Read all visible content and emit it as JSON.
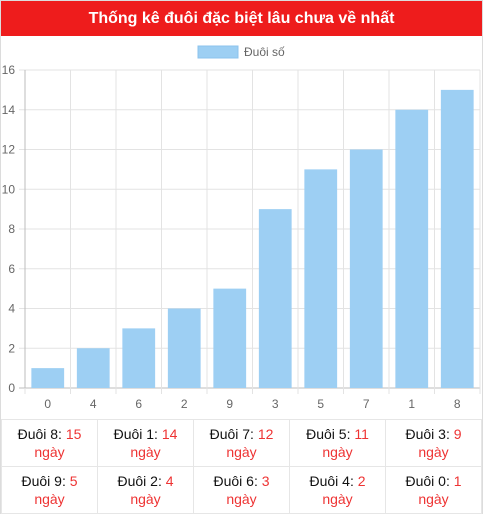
{
  "header": {
    "title": "Thống kê đuôi đặc biệt lâu chưa về nhất"
  },
  "chart_data": {
    "type": "bar",
    "legend_label": "Đuôi số",
    "legend_position": "top",
    "categories": [
      "0",
      "4",
      "6",
      "2",
      "9",
      "3",
      "5",
      "7",
      "1",
      "8"
    ],
    "values": [
      1,
      2,
      3,
      4,
      5,
      9,
      11,
      12,
      14,
      15
    ],
    "ylim": [
      0,
      16
    ],
    "yticks": [
      "0",
      "2",
      "4",
      "6",
      "8",
      "10",
      "12",
      "14",
      "16"
    ],
    "bar_color": "#9dcff3",
    "grid": true
  },
  "table": {
    "rows": [
      [
        {
          "label": "Đuôi 8:",
          "value": "15",
          "unit": "ngày"
        },
        {
          "label": "Đuôi 1:",
          "value": "14",
          "unit": "ngày"
        },
        {
          "label": "Đuôi 7:",
          "value": "12",
          "unit": "ngày"
        },
        {
          "label": "Đuôi 5:",
          "value": "11",
          "unit": "ngày"
        },
        {
          "label": "Đuôi 3:",
          "value": "9",
          "unit": "ngày"
        }
      ],
      [
        {
          "label": "Đuôi 9:",
          "value": "5",
          "unit": "ngày"
        },
        {
          "label": "Đuôi 2:",
          "value": "4",
          "unit": "ngày"
        },
        {
          "label": "Đuôi 6:",
          "value": "3",
          "unit": "ngày"
        },
        {
          "label": "Đuôi 4:",
          "value": "2",
          "unit": "ngày"
        },
        {
          "label": "Đuôi 0:",
          "value": "1",
          "unit": "ngày"
        }
      ]
    ]
  },
  "colors": {
    "title_bg": "#ee1c1c",
    "accent": "#e33333"
  }
}
